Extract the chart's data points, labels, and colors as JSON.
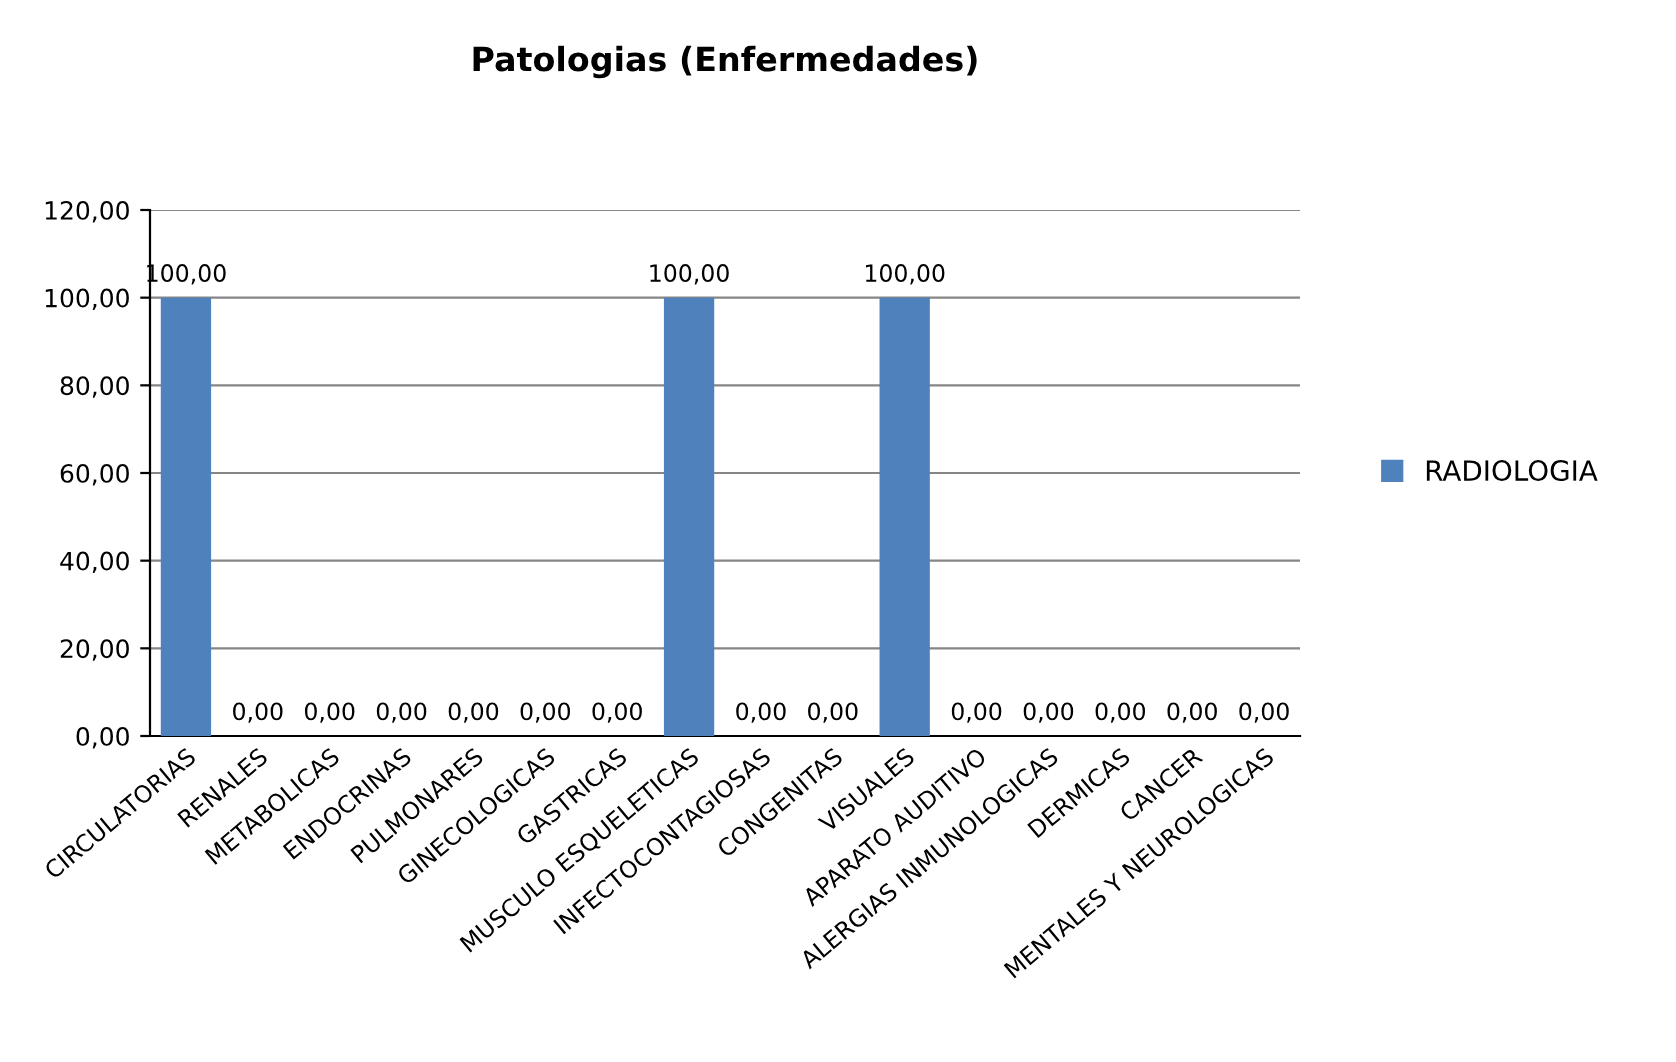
{
  "chart_data": {
    "type": "bar",
    "title": "Patologias (Enfermedades)",
    "categories": [
      "CIRCULATORIAS",
      "RENALES",
      "METABOLICAS",
      "ENDOCRINAS",
      "PULMONARES",
      "GINECOLOGICAS",
      "GASTRICAS",
      "MUSCULO ESQUELETICAS",
      "INFECTOCONTAGIOSAS",
      "CONGENITAS",
      "VISUALES",
      "APARATO AUDITIVO",
      "ALERGIAS INMUNOLOGICAS",
      "DERMICAS",
      "CANCER",
      "MENTALES Y NEUROLOGICAS"
    ],
    "series": [
      {
        "name": "RADIOLOGIA",
        "color": "#4f81bd",
        "values": [
          100,
          0,
          0,
          0,
          0,
          0,
          0,
          100,
          0,
          0,
          100,
          0,
          0,
          0,
          0,
          0
        ],
        "value_labels": [
          "100,00",
          "0,00",
          "0,00",
          "0,00",
          "0,00",
          "0,00",
          "0,00",
          "100,00",
          "0,00",
          "0,00",
          "100,00",
          "0,00",
          "0,00",
          "0,00",
          "0,00",
          "0,00"
        ]
      }
    ],
    "ylim": [
      0,
      120
    ],
    "yticks": [
      {
        "value": 0,
        "label": "0,00"
      },
      {
        "value": 20,
        "label": "20,00"
      },
      {
        "value": 40,
        "label": "40,00"
      },
      {
        "value": 60,
        "label": "60,00"
      },
      {
        "value": 80,
        "label": "80,00"
      },
      {
        "value": 100,
        "label": "100,00"
      },
      {
        "value": 120,
        "label": "120,00"
      }
    ],
    "grid": "y",
    "legend": "right"
  }
}
